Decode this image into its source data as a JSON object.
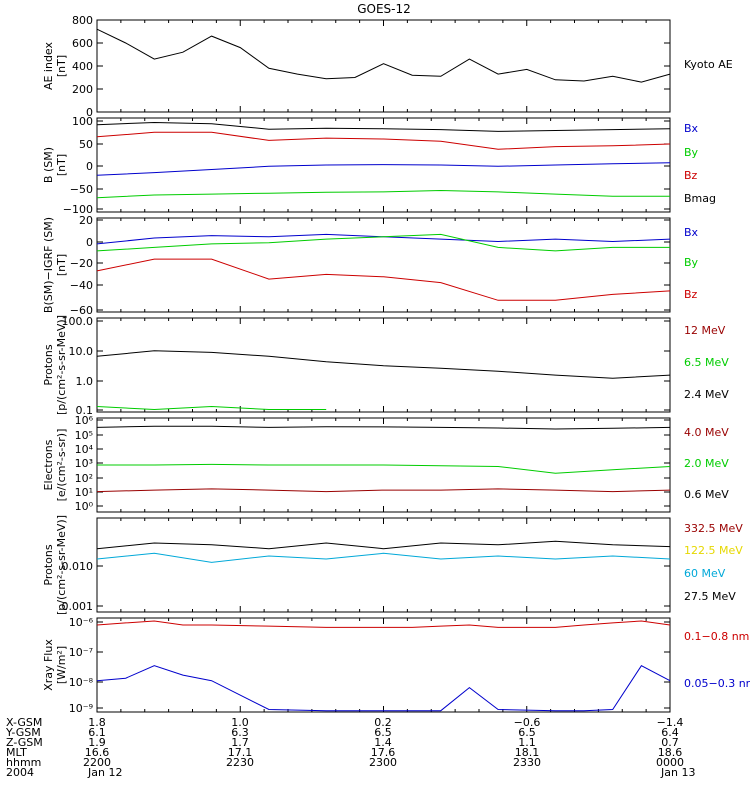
{
  "title": "GOES-12",
  "colors": {
    "black": "#000000",
    "red": "#cc0000",
    "green": "#00cc00",
    "blue": "#0000cc",
    "yellow": "#e6d800",
    "cyan": "#00a8d8",
    "darkred": "#990000"
  },
  "panels": [
    {
      "id": "ae",
      "ylabel_lines": [
        "AE index",
        "[nT]"
      ],
      "yticks": [
        "800",
        "600",
        "400",
        "200",
        "0"
      ],
      "legend": [
        {
          "label": "Kyoto AE",
          "color": "black"
        }
      ]
    },
    {
      "id": "bsm",
      "ylabel_lines": [
        "B (SM)",
        "[nT]"
      ],
      "yticks": [
        "100",
        "50",
        "0",
        "−50",
        "−100"
      ],
      "legend": [
        {
          "label": "Bx",
          "color": "blue"
        },
        {
          "label": "By",
          "color": "green"
        },
        {
          "label": "Bz",
          "color": "red"
        },
        {
          "label": "Bmag",
          "color": "black"
        }
      ]
    },
    {
      "id": "bigrf",
      "ylabel_lines": [
        "B(SM)−IGRF (SM)",
        "[nT]"
      ],
      "yticks": [
        "20",
        "0",
        "−20",
        "−40",
        "−60"
      ],
      "legend": [
        {
          "label": "Bx",
          "color": "blue"
        },
        {
          "label": "By",
          "color": "green"
        },
        {
          "label": "Bz",
          "color": "red"
        }
      ]
    },
    {
      "id": "protons_hi",
      "ylabel_lines": [
        "Protons",
        "[p/(cm²-s-sr-MeV)]"
      ],
      "yticks": [
        "100.0",
        "10.0",
        "1.0",
        "0.1"
      ],
      "legend": [
        {
          "label": "12 MeV",
          "color": "darkred"
        },
        {
          "label": "6.5 MeV",
          "color": "green"
        },
        {
          "label": "2.4 MeV",
          "color": "black"
        }
      ]
    },
    {
      "id": "electrons",
      "ylabel_lines": [
        "Electrons",
        "[e/(cm²-s-sr)]"
      ],
      "yticks": [
        "10⁶",
        "10⁵",
        "10⁴",
        "10³",
        "10²",
        "10¹",
        "10⁰"
      ],
      "legend": [
        {
          "label": "4.0 MeV",
          "color": "darkred"
        },
        {
          "label": "2.0 MeV",
          "color": "green"
        },
        {
          "label": "0.6 MeV",
          "color": "black"
        }
      ]
    },
    {
      "id": "protons_lo",
      "ylabel_lines": [
        "Protons",
        "[p/(cm²-s-sr-MeV)]"
      ],
      "yticks": [
        "0.010",
        "0.001"
      ],
      "legend": [
        {
          "label": "332.5 MeV",
          "color": "darkred"
        },
        {
          "label": "122.5 MeV",
          "color": "yellow"
        },
        {
          "label": "60 MeV",
          "color": "cyan"
        },
        {
          "label": "27.5 MeV",
          "color": "black"
        }
      ]
    },
    {
      "id": "xray",
      "ylabel_lines": [
        "Xray Flux",
        "[W/m²]"
      ],
      "yticks": [
        "10⁻⁶",
        "10⁻⁷",
        "10⁻⁸",
        "10⁻⁹"
      ],
      "legend": [
        {
          "label": "0.1−0.8 nm",
          "color": "red"
        },
        {
          "label": "0.05−0.3 nr",
          "color": "blue"
        }
      ]
    }
  ],
  "footer": {
    "row_labels": [
      "X-GSM",
      "Y-GSM",
      "Z-GSM",
      "MLT",
      "hhmm",
      "2004"
    ],
    "columns": [
      [
        "1.8",
        "6.1",
        "1.9",
        "16.6",
        "2200",
        "Jan 12"
      ],
      [
        "1.0",
        "6.3",
        "1.7",
        "17.1",
        "2230",
        ""
      ],
      [
        "0.2",
        "6.5",
        "1.4",
        "17.6",
        "2300",
        ""
      ],
      [
        "−0.6",
        "6.5",
        "1.1",
        "18.1",
        "2330",
        ""
      ],
      [
        "−1.4",
        "6.4",
        "0.7",
        "18.6",
        "0000",
        "Jan 13"
      ]
    ]
  },
  "chart_data": [
    {
      "type": "line",
      "title": "GOES-12",
      "ylabel": "AE index [nT]",
      "ylim": [
        0,
        800
      ],
      "x": [
        0,
        0.05,
        0.1,
        0.15,
        0.2,
        0.25,
        0.3,
        0.35,
        0.4,
        0.45,
        0.5,
        0.55,
        0.6,
        0.65,
        0.7,
        0.75,
        0.8,
        0.85,
        0.9,
        0.95,
        1.0
      ],
      "series": [
        {
          "name": "Kyoto AE",
          "color": "black",
          "values": [
            720,
            600,
            460,
            520,
            660,
            560,
            380,
            330,
            290,
            300,
            420,
            320,
            310,
            460,
            330,
            370,
            280,
            270,
            310,
            260,
            330
          ]
        }
      ]
    },
    {
      "type": "line",
      "ylabel": "B (SM) [nT]",
      "ylim": [
        -100,
        110
      ],
      "x": [
        0,
        0.1,
        0.2,
        0.3,
        0.4,
        0.5,
        0.6,
        0.7,
        0.8,
        0.9,
        1.0
      ],
      "series": [
        {
          "name": "Bmag",
          "color": "black",
          "values": [
            95,
            100,
            97,
            85,
            87,
            86,
            84,
            80,
            82,
            84,
            86
          ]
        },
        {
          "name": "Bz",
          "color": "red",
          "values": [
            68,
            78,
            78,
            60,
            65,
            63,
            58,
            40,
            46,
            48,
            52
          ]
        },
        {
          "name": "Bx",
          "color": "blue",
          "values": [
            -18,
            -12,
            -5,
            2,
            5,
            6,
            5,
            2,
            5,
            8,
            10
          ]
        },
        {
          "name": "By",
          "color": "green",
          "values": [
            -68,
            -62,
            -60,
            -58,
            -56,
            -55,
            -52,
            -55,
            -60,
            -65,
            -65
          ]
        }
      ]
    },
    {
      "type": "line",
      "ylabel": "B(SM)-IGRF (SM) [nT]",
      "ylim": [
        -60,
        20
      ],
      "x": [
        0,
        0.1,
        0.2,
        0.3,
        0.4,
        0.5,
        0.6,
        0.7,
        0.8,
        0.9,
        1.0
      ],
      "series": [
        {
          "name": "Bx",
          "color": "blue",
          "values": [
            -2,
            3,
            5,
            4,
            6,
            4,
            2,
            0,
            2,
            0,
            2
          ]
        },
        {
          "name": "By",
          "color": "green",
          "values": [
            -8,
            -5,
            -2,
            -1,
            2,
            4,
            6,
            -5,
            -8,
            -5,
            -5
          ]
        },
        {
          "name": "Bz",
          "color": "red",
          "values": [
            -25,
            -15,
            -15,
            -32,
            -28,
            -30,
            -35,
            -50,
            -50,
            -45,
            -42
          ]
        }
      ]
    },
    {
      "type": "line",
      "ylabel": "Protons [p/(cm2-s-sr-MeV)]",
      "ylim": [
        0.1,
        100
      ],
      "yscale": "log",
      "x": [
        0,
        0.1,
        0.2,
        0.3,
        0.4,
        0.5,
        0.6,
        0.7,
        0.8,
        0.9,
        1.0
      ],
      "series": [
        {
          "name": "2.4 MeV",
          "color": "black",
          "values": [
            6,
            9,
            8,
            6,
            4,
            3,
            2.5,
            2,
            1.5,
            1.2,
            1.5
          ]
        },
        {
          "name": "6.5 MeV",
          "color": "green",
          "values": [
            0.15,
            0.12,
            0.15,
            0.12,
            0.12,
            null,
            null,
            null,
            null,
            null,
            null
          ]
        }
      ]
    },
    {
      "type": "line",
      "ylabel": "Electrons [e/(cm2-s-sr)]",
      "ylim": [
        1,
        1000000
      ],
      "yscale": "log",
      "x": [
        0,
        0.1,
        0.2,
        0.3,
        0.4,
        0.5,
        0.6,
        0.7,
        0.8,
        0.9,
        1.0
      ],
      "series": [
        {
          "name": "0.6 MeV",
          "color": "black",
          "values": [
            250000,
            300000,
            300000,
            250000,
            280000,
            270000,
            250000,
            230000,
            200000,
            220000,
            250000
          ]
        },
        {
          "name": "2.0 MeV",
          "color": "green",
          "values": [
            1000,
            1000,
            1100,
            1000,
            1000,
            1000,
            900,
            800,
            300,
            500,
            800
          ]
        },
        {
          "name": "4.0 MeV",
          "color": "darkred",
          "values": [
            20,
            25,
            30,
            25,
            20,
            25,
            25,
            30,
            25,
            20,
            25
          ]
        }
      ]
    },
    {
      "type": "line",
      "ylabel": "Protons [p/(cm2-s-sr-MeV)]",
      "ylim": [
        0.001,
        0.04
      ],
      "yscale": "log",
      "x": [
        0,
        0.1,
        0.2,
        0.3,
        0.4,
        0.5,
        0.6,
        0.7,
        0.8,
        0.9,
        1.0
      ],
      "series": [
        {
          "name": "27.5 MeV",
          "color": "black",
          "values": [
            0.012,
            0.015,
            0.014,
            0.012,
            0.015,
            0.012,
            0.015,
            0.014,
            0.016,
            0.014,
            0.013
          ]
        },
        {
          "name": "60 MeV",
          "color": "cyan",
          "values": [
            0.008,
            0.01,
            0.007,
            0.009,
            0.008,
            0.01,
            0.008,
            0.009,
            0.008,
            0.009,
            0.008
          ]
        }
      ]
    },
    {
      "type": "line",
      "ylabel": "Xray Flux [W/m2]",
      "ylim": [
        1e-09,
        1e-06
      ],
      "yscale": "log",
      "x": [
        0,
        0.05,
        0.1,
        0.15,
        0.2,
        0.3,
        0.4,
        0.5,
        0.55,
        0.6,
        0.65,
        0.7,
        0.8,
        0.85,
        0.9,
        0.95,
        1.0
      ],
      "series": [
        {
          "name": "0.1-0.8 nm",
          "color": "red",
          "values": [
            6e-07,
            7e-07,
            8e-07,
            6e-07,
            6e-07,
            5.5e-07,
            5e-07,
            5e-07,
            5e-07,
            5.5e-07,
            6e-07,
            5e-07,
            5e-07,
            6e-07,
            7e-07,
            8e-07,
            6e-07
          ]
        },
        {
          "name": "0.05-0.3 nm",
          "color": "blue",
          "values": [
            1e-08,
            1.2e-08,
            3e-08,
            1.5e-08,
            1e-08,
            1.2e-09,
            1.1e-09,
            1.1e-09,
            1.1e-09,
            1.1e-09,
            6e-09,
            1.2e-09,
            1.1e-09,
            1.1e-09,
            1.2e-09,
            3e-08,
            1e-08
          ]
        }
      ]
    }
  ]
}
